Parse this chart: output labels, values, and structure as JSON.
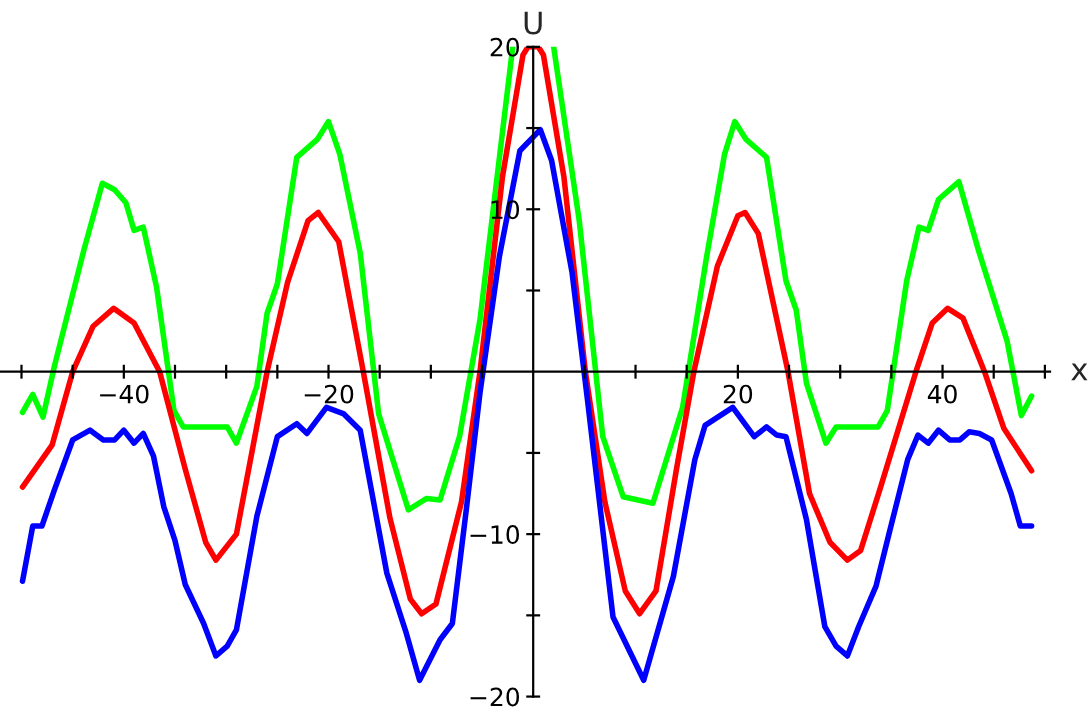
{
  "chart_data": {
    "type": "line",
    "xlabel": "x",
    "ylabel": "U",
    "xlim": [
      -52.1,
      50.5
    ],
    "ylim": [
      -20,
      20
    ],
    "xticks": [
      {
        "value": -50,
        "label": null
      },
      {
        "value": -45,
        "label": null
      },
      {
        "value": -40,
        "label": "−40"
      },
      {
        "value": -35,
        "label": null
      },
      {
        "value": -30,
        "label": null
      },
      {
        "value": -25,
        "label": null
      },
      {
        "value": -20,
        "label": "−20"
      },
      {
        "value": -15,
        "label": null
      },
      {
        "value": -10,
        "label": null
      },
      {
        "value": -5,
        "label": null
      },
      {
        "value": 5,
        "label": null
      },
      {
        "value": 10,
        "label": null
      },
      {
        "value": 15,
        "label": null
      },
      20,
      {
        "value": 25,
        "label": null
      },
      {
        "value": 30,
        "label": null
      },
      {
        "value": 35,
        "label": null
      },
      40,
      {
        "value": 45,
        "label": null
      },
      {
        "value": 50,
        "label": null
      }
    ],
    "yticks": [
      {
        "value": -20,
        "label": "−20"
      },
      {
        "value": -15,
        "label": null
      },
      {
        "value": -10,
        "label": "−10"
      },
      {
        "value": -5,
        "label": null
      },
      {
        "value": 5,
        "label": null
      },
      10,
      {
        "value": 15,
        "label": null
      },
      20
    ],
    "grid": false,
    "legend": false,
    "marker": "none",
    "line_style": "solid",
    "series": [
      {
        "color": "#00ff00",
        "x": [
          -49.9,
          -48.9,
          -47.9,
          -46.8,
          -43.9,
          -42.1,
          -40.9,
          -39.8,
          -39.0,
          -38.1,
          -36.8,
          -35.1,
          -34.2,
          -29.9,
          -29.0,
          -27.0,
          -26.0,
          -25.0,
          -23.1,
          -21.1,
          -20.0,
          -18.9,
          -16.9,
          -15.1,
          -12.2,
          -10.4,
          -9.1,
          -7.2,
          -5.2,
          -2.0,
          0,
          2.0,
          4.5,
          6.8,
          8.8,
          11.7,
          14.6,
          16.9,
          18.7,
          19.7,
          20.8,
          22.8,
          24.7,
          25.7,
          26.7,
          28.6,
          29.6,
          33.7,
          34.6,
          36.5,
          37.7,
          38.6,
          39.6,
          41.6,
          43.5,
          46.3,
          47.7,
          48.7
        ],
        "values": [
          -2.5,
          -1.4,
          -2.8,
          0.3,
          7.5,
          11.6,
          11.2,
          10.4,
          8.7,
          8.9,
          5.2,
          -2.4,
          -3.4,
          -3.4,
          -4.4,
          -0.9,
          3.6,
          5.4,
          13.2,
          14.3,
          15.4,
          13.4,
          7.3,
          -2.6,
          -8.5,
          -7.8,
          -7.9,
          -4.0,
          3.2,
          20,
          null,
          20,
          9.3,
          -4.0,
          -7.7,
          -8.1,
          -2.2,
          6.9,
          13.4,
          15.4,
          14.3,
          13.2,
          5.6,
          3.8,
          -0.7,
          -4.4,
          -3.4,
          -3.4,
          -2.4,
          5.6,
          8.9,
          8.7,
          10.6,
          11.7,
          7.5,
          1.9,
          -2.7,
          -1.5
        ]
      },
      {
        "color": "#ff0000",
        "x": [
          -49.9,
          -47,
          -45,
          -43,
          -41,
          -39,
          -36.5,
          -34,
          -32,
          -31,
          -29,
          -26,
          -24,
          -22,
          -21,
          -19,
          -16.6,
          -14,
          -12,
          -10.9,
          -9.5,
          -7,
          -5.2,
          -3,
          -1,
          -0.5,
          0.5,
          1,
          3,
          5.1,
          7,
          9,
          10.4,
          12,
          14,
          15.7,
          18,
          20,
          20.7,
          22,
          24.9,
          27,
          29,
          30.7,
          32,
          34,
          37.4,
          39,
          40.5,
          42,
          44.1,
          46,
          48.7
        ],
        "values": [
          -7.1,
          -4.5,
          0,
          2.8,
          3.9,
          3.0,
          0,
          -6,
          -10.5,
          -11.6,
          -10,
          0,
          5.5,
          9.3,
          9.8,
          8,
          0,
          -9,
          -14,
          -14.9,
          -14.3,
          -8,
          0,
          12,
          19.5,
          20,
          20,
          19.5,
          12,
          0,
          -8,
          -13.5,
          -14.9,
          -13.5,
          -6,
          0,
          6.5,
          9.6,
          9.8,
          8.5,
          0,
          -7.5,
          -10.5,
          -11.6,
          -11,
          -7,
          0,
          3,
          3.9,
          3.3,
          0,
          -3.5,
          -6.1
        ]
      },
      {
        "color": "#0000ff",
        "x": [
          -49.9,
          -48.9,
          -48.0,
          -46.8,
          -45.0,
          -43.3,
          -42.0,
          -40.9,
          -40.0,
          -39.0,
          -38.1,
          -37.1,
          -36.1,
          -35.0,
          -34.0,
          -32.2,
          -31.0,
          -29.9,
          -29.0,
          -27.0,
          -25.0,
          -23.1,
          -22.1,
          -20.2,
          -18.5,
          -16.9,
          -14.3,
          -12.4,
          -11.1,
          -9.1,
          -7.9,
          -6.5,
          -5.2,
          -3.3,
          -1.3,
          0.7,
          1.8,
          3.8,
          5.3,
          7.8,
          10.8,
          13.7,
          15.8,
          16.8,
          19.5,
          21.6,
          22.8,
          23.8,
          24.7,
          26.7,
          28.5,
          29.6,
          30.7,
          31.8,
          33.5,
          34.8,
          36.6,
          37.6,
          38.6,
          39.6,
          40.7,
          41.7,
          42.6,
          43.6,
          44.8,
          46.7,
          47.6,
          48.7
        ],
        "values": [
          -12.9,
          -9.5,
          -9.5,
          -7.3,
          -4.2,
          -3.6,
          -4.2,
          -4.2,
          -3.6,
          -4.4,
          -3.8,
          -5.2,
          -8.3,
          -10.4,
          -13.1,
          -15.5,
          -17.5,
          -16.9,
          -15.9,
          -8.9,
          -4.0,
          -3.2,
          -3.8,
          -2.2,
          -2.6,
          -3.6,
          -12.4,
          -16.1,
          -19.0,
          -16.5,
          -15.5,
          -8.3,
          -1.3,
          7.1,
          13.6,
          14.9,
          13.0,
          6.1,
          -1.7,
          -15.1,
          -19.0,
          -12.6,
          -5.4,
          -3.3,
          -2.2,
          -4.0,
          -3.4,
          -3.9,
          -4.0,
          -9.1,
          -15.7,
          -16.9,
          -17.5,
          -15.7,
          -13.2,
          -9.9,
          -5.4,
          -3.9,
          -4.4,
          -3.6,
          -4.2,
          -4.2,
          -3.7,
          -3.8,
          -4.2,
          -7.5,
          -9.5,
          -9.5
        ]
      }
    ]
  }
}
